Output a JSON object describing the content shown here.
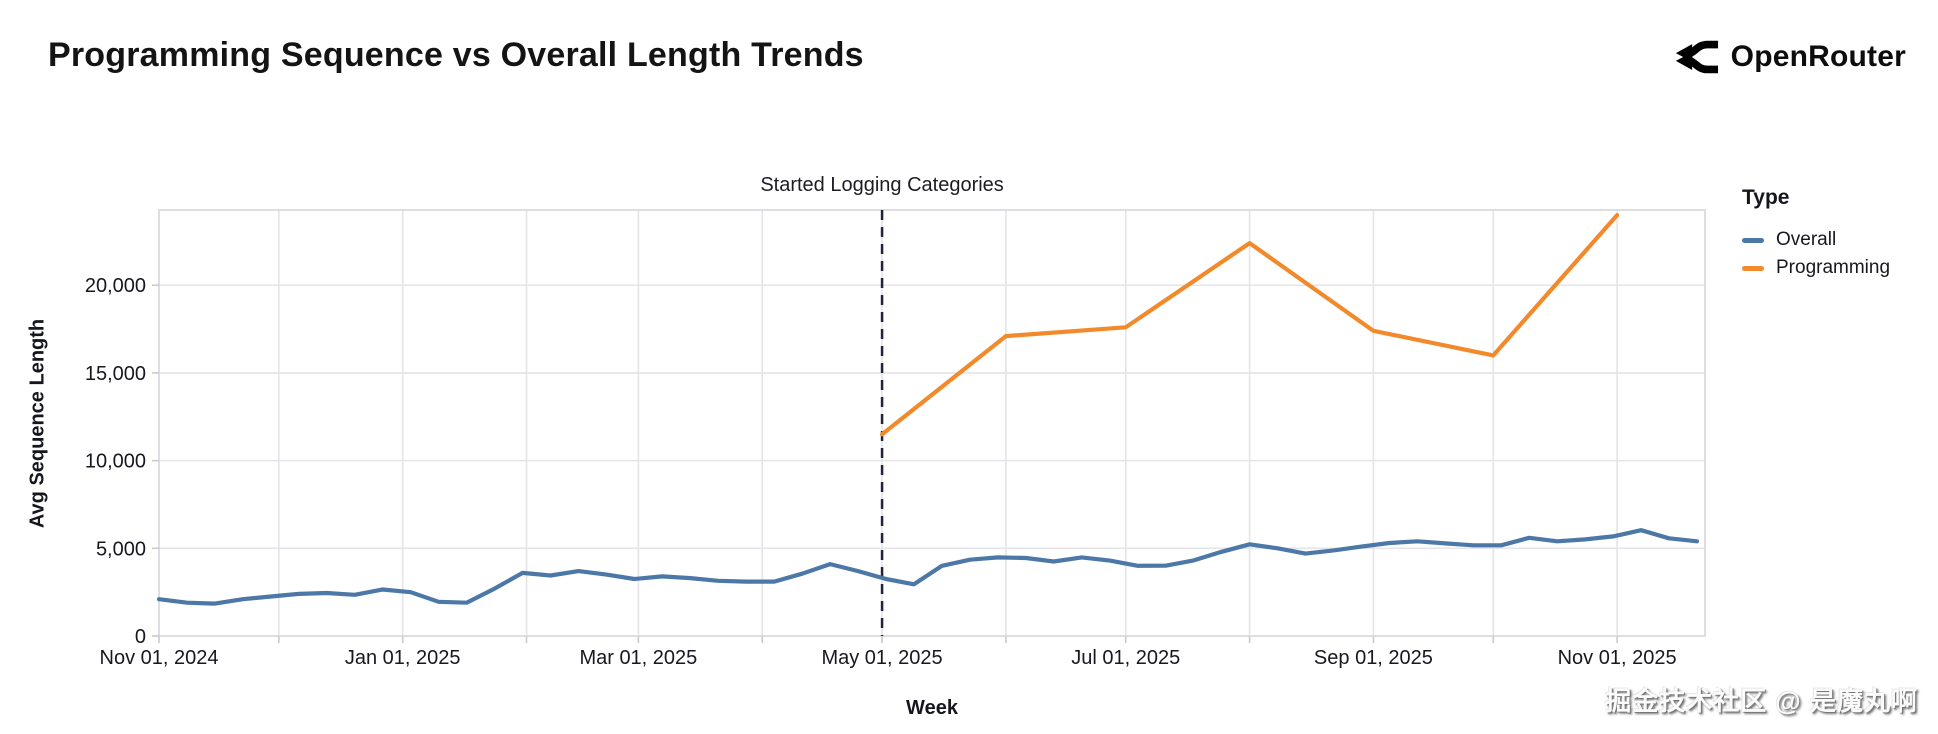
{
  "header": {
    "title": "Programming Sequence vs Overall Length Trends",
    "brand": "OpenRouter"
  },
  "watermark": "掘金技术社区 @ 是魔丸啊",
  "chart_data": {
    "type": "line",
    "title": "Programming Sequence vs Overall Length Trends",
    "xlabel": "Week",
    "ylabel": "Avg Sequence Length",
    "ylim": [
      0,
      24290
    ],
    "x_domain": [
      "Nov 01, 2024",
      "Nov 22, 2025"
    ],
    "grid": true,
    "legend_position": "right",
    "legend": {
      "title": "Type",
      "entries": [
        {
          "label": "Overall",
          "color": "#4c78a8"
        },
        {
          "label": "Programming",
          "color": "#f28a2b"
        }
      ]
    },
    "annotation": {
      "label": "Started Logging Categories",
      "day": 181,
      "style": "dashed-vertical-rule",
      "color": "#20243a"
    },
    "x_ticks": [
      {
        "day": 0,
        "label": "Nov 01, 2024"
      },
      {
        "day": 61,
        "label": "Jan 01, 2025"
      },
      {
        "day": 120,
        "label": "Mar 01, 2025"
      },
      {
        "day": 181,
        "label": "May 01, 2025"
      },
      {
        "day": 242,
        "label": "Jul 01, 2025"
      },
      {
        "day": 304,
        "label": "Sep 01, 2025"
      },
      {
        "day": 365,
        "label": "Nov 01, 2025"
      }
    ],
    "month_grid_days": [
      0,
      30,
      61,
      92,
      120,
      151,
      181,
      212,
      242,
      273,
      304,
      334,
      365
    ],
    "y_ticks": [
      {
        "value": 0,
        "label": "0"
      },
      {
        "value": 5000,
        "label": "5,000"
      },
      {
        "value": 10000,
        "label": "10,000"
      },
      {
        "value": 15000,
        "label": "15,000"
      },
      {
        "value": 20000,
        "label": "20,000"
      }
    ],
    "series": [
      {
        "name": "Overall",
        "color": "#4c78a8",
        "cadence": "weekly",
        "points": [
          [
            0,
            2100
          ],
          [
            7,
            1900
          ],
          [
            14,
            1850
          ],
          [
            21,
            2100
          ],
          [
            28,
            2250
          ],
          [
            35,
            2400
          ],
          [
            42,
            2450
          ],
          [
            49,
            2350
          ],
          [
            56,
            2650
          ],
          [
            63,
            2500
          ],
          [
            70,
            1950
          ],
          [
            77,
            1900
          ],
          [
            84,
            2700
          ],
          [
            91,
            3600
          ],
          [
            98,
            3450
          ],
          [
            105,
            3700
          ],
          [
            112,
            3500
          ],
          [
            119,
            3250
          ],
          [
            126,
            3400
          ],
          [
            133,
            3300
          ],
          [
            140,
            3150
          ],
          [
            147,
            3100
          ],
          [
            154,
            3100
          ],
          [
            161,
            3550
          ],
          [
            168,
            4100
          ],
          [
            175,
            3700
          ],
          [
            182,
            3250
          ],
          [
            189,
            2950
          ],
          [
            196,
            4000
          ],
          [
            203,
            4350
          ],
          [
            210,
            4480
          ],
          [
            217,
            4450
          ],
          [
            224,
            4250
          ],
          [
            231,
            4480
          ],
          [
            238,
            4300
          ],
          [
            245,
            4000
          ],
          [
            252,
            4010
          ],
          [
            259,
            4310
          ],
          [
            266,
            4800
          ],
          [
            273,
            5230
          ],
          [
            280,
            5000
          ],
          [
            287,
            4700
          ],
          [
            294,
            4880
          ],
          [
            301,
            5100
          ],
          [
            308,
            5300
          ],
          [
            315,
            5400
          ],
          [
            322,
            5280
          ],
          [
            329,
            5170
          ],
          [
            336,
            5170
          ],
          [
            343,
            5600
          ],
          [
            350,
            5400
          ],
          [
            357,
            5510
          ],
          [
            364,
            5680
          ],
          [
            371,
            6030
          ],
          [
            378,
            5570
          ],
          [
            385,
            5400
          ]
        ]
      },
      {
        "name": "Programming",
        "color": "#f28a2b",
        "cadence": "monthly",
        "points": [
          [
            181,
            11500
          ],
          [
            212,
            17100
          ],
          [
            242,
            17600
          ],
          [
            273,
            22400
          ],
          [
            304,
            17400
          ],
          [
            334,
            16000
          ],
          [
            365,
            24000
          ]
        ]
      }
    ],
    "colors": {
      "grid": "#e4e4e9",
      "border": "#d6d6db",
      "tick_text": "#17181f",
      "rule": "#20243a"
    }
  }
}
